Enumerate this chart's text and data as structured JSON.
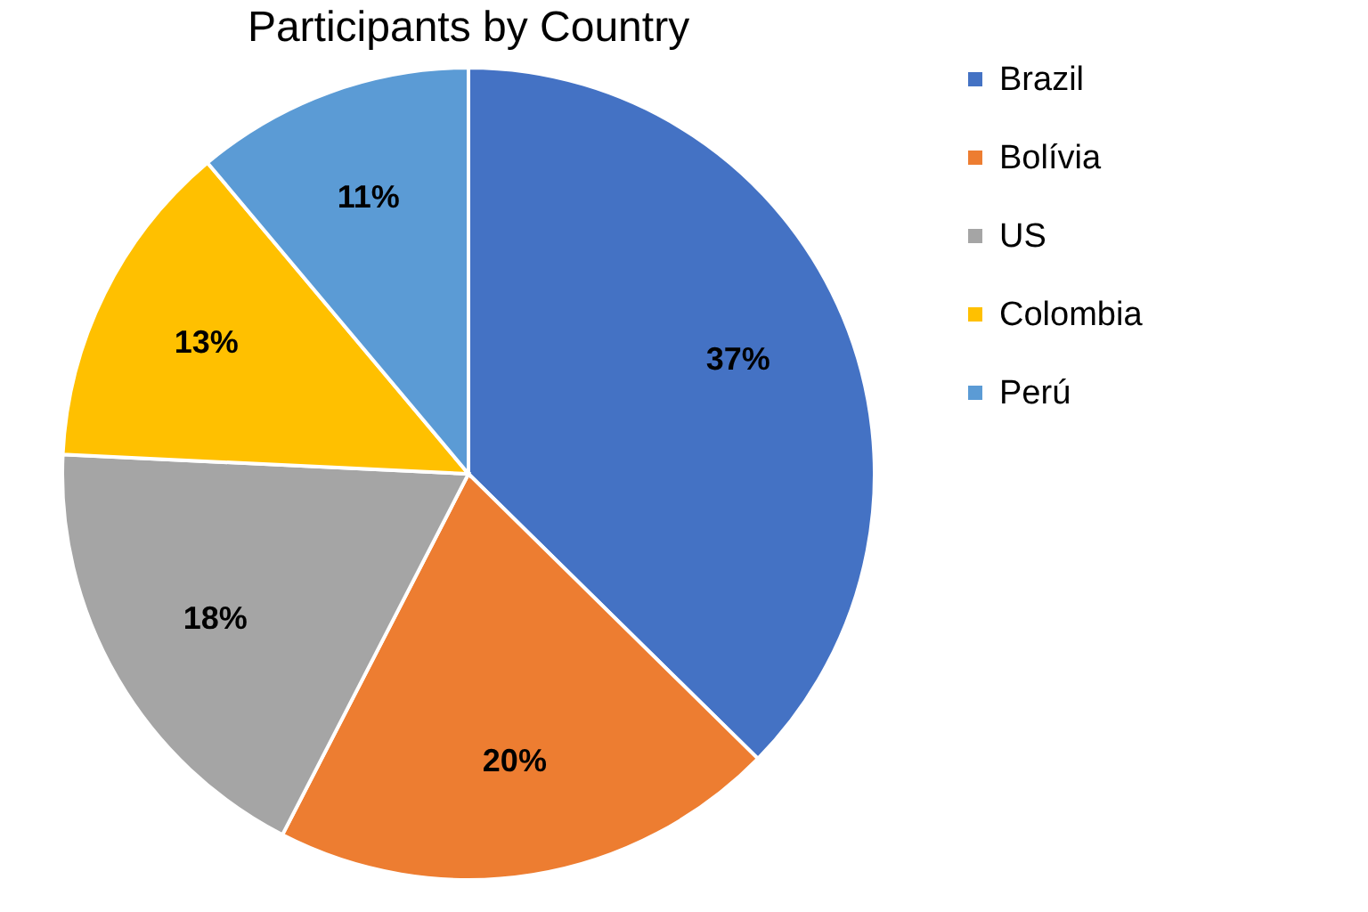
{
  "chart_data": {
    "type": "pie",
    "title": "Participants by Country",
    "categories": [
      "Brazil",
      "Bolívia",
      "US",
      "Colombia",
      "Perú"
    ],
    "values": [
      37,
      20,
      18,
      13,
      11
    ],
    "value_labels": [
      "37%",
      "20%",
      "18%",
      "13%",
      "11%"
    ],
    "colors": [
      "#4472c4",
      "#ed7d31",
      "#a5a5a5",
      "#ffc000",
      "#5b9bd5"
    ],
    "legend": "right"
  }
}
